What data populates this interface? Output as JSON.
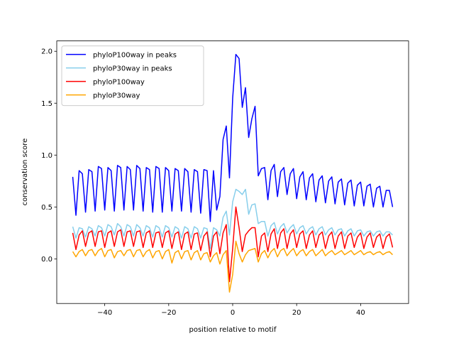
{
  "chart_data": {
    "type": "line",
    "xlabel": "position relative to motif",
    "ylabel": "conservation score",
    "legend": "upper left",
    "xlim": [
      -55,
      55
    ],
    "ylim": [
      -0.43,
      2.1
    ],
    "xticks": [
      {
        "value": -40,
        "label": "−40"
      },
      {
        "value": -20,
        "label": "−20"
      },
      0,
      20,
      40
    ],
    "yticks": [
      {
        "value": 0,
        "label": "0.0"
      },
      0.5,
      {
        "value": 1,
        "label": "1.0"
      },
      1.5,
      {
        "value": 2,
        "label": "2.0"
      }
    ],
    "x": [
      -50,
      -49,
      -48,
      -47,
      -46,
      -45,
      -44,
      -43,
      -42,
      -41,
      -40,
      -39,
      -38,
      -37,
      -36,
      -35,
      -34,
      -33,
      -32,
      -31,
      -30,
      -29,
      -28,
      -27,
      -26,
      -25,
      -24,
      -23,
      -22,
      -21,
      -20,
      -19,
      -18,
      -17,
      -16,
      -15,
      -14,
      -13,
      -12,
      -11,
      -10,
      -9,
      -8,
      -7,
      -6,
      -5,
      -4,
      -3,
      -2,
      -1,
      0,
      1,
      2,
      3,
      4,
      5,
      6,
      7,
      8,
      9,
      10,
      11,
      12,
      13,
      14,
      15,
      16,
      17,
      18,
      19,
      20,
      21,
      22,
      23,
      24,
      25,
      26,
      27,
      28,
      29,
      30,
      31,
      32,
      33,
      34,
      35,
      36,
      37,
      38,
      39,
      40,
      41,
      42,
      43,
      44,
      45,
      46,
      47,
      48,
      49,
      50
    ],
    "series": [
      {
        "name": "phyloP100way in peaks",
        "color": "#0000ff",
        "values": [
          0.79,
          0.42,
          0.85,
          0.82,
          0.45,
          0.86,
          0.84,
          0.46,
          0.89,
          0.87,
          0.47,
          0.88,
          0.85,
          0.46,
          0.9,
          0.88,
          0.47,
          0.89,
          0.86,
          0.47,
          0.9,
          0.87,
          0.46,
          0.88,
          0.86,
          0.45,
          0.89,
          0.87,
          0.45,
          0.88,
          0.85,
          0.46,
          0.87,
          0.85,
          0.46,
          0.87,
          0.84,
          0.45,
          0.86,
          0.84,
          0.44,
          0.86,
          0.85,
          0.36,
          0.85,
          0.47,
          0.6,
          1.15,
          1.28,
          0.78,
          1.55,
          1.97,
          1.93,
          1.46,
          1.65,
          1.17,
          1.35,
          1.47,
          0.8,
          0.87,
          0.88,
          0.57,
          0.85,
          0.91,
          0.6,
          0.84,
          0.88,
          0.62,
          0.82,
          0.87,
          0.58,
          0.79,
          0.84,
          0.57,
          0.78,
          0.82,
          0.55,
          0.76,
          0.8,
          0.54,
          0.75,
          0.79,
          0.53,
          0.74,
          0.77,
          0.52,
          0.73,
          0.76,
          0.51,
          0.71,
          0.74,
          0.51,
          0.7,
          0.72,
          0.5,
          0.68,
          0.7,
          0.5,
          0.66,
          0.66,
          0.5
        ]
      },
      {
        "name": "phyloP30way in peaks",
        "color": "#87ceeb",
        "values": [
          0.31,
          0.2,
          0.3,
          0.29,
          0.21,
          0.31,
          0.29,
          0.22,
          0.32,
          0.3,
          0.22,
          0.33,
          0.31,
          0.23,
          0.34,
          0.31,
          0.22,
          0.33,
          0.31,
          0.22,
          0.33,
          0.3,
          0.22,
          0.32,
          0.3,
          0.21,
          0.32,
          0.3,
          0.21,
          0.32,
          0.3,
          0.21,
          0.31,
          0.29,
          0.2,
          0.31,
          0.29,
          0.2,
          0.31,
          0.29,
          0.2,
          0.3,
          0.29,
          0.1,
          0.3,
          0.28,
          0.22,
          0.4,
          0.46,
          0.23,
          0.55,
          0.67,
          0.65,
          0.62,
          0.67,
          0.43,
          0.52,
          0.53,
          0.34,
          0.36,
          0.36,
          0.22,
          0.32,
          0.35,
          0.24,
          0.31,
          0.34,
          0.25,
          0.3,
          0.33,
          0.24,
          0.3,
          0.32,
          0.24,
          0.29,
          0.31,
          0.23,
          0.29,
          0.31,
          0.23,
          0.28,
          0.3,
          0.23,
          0.28,
          0.29,
          0.22,
          0.27,
          0.29,
          0.22,
          0.27,
          0.28,
          0.22,
          0.26,
          0.27,
          0.22,
          0.26,
          0.27,
          0.22,
          0.26,
          0.26,
          0.23
        ]
      },
      {
        "name": "phyloP100way",
        "color": "#ff0000",
        "values": [
          0.25,
          0.09,
          0.23,
          0.27,
          0.12,
          0.25,
          0.27,
          0.12,
          0.26,
          0.27,
          0.11,
          0.25,
          0.27,
          0.12,
          0.26,
          0.28,
          0.12,
          0.26,
          0.27,
          0.12,
          0.26,
          0.27,
          0.11,
          0.25,
          0.27,
          0.11,
          0.25,
          0.26,
          0.11,
          0.25,
          0.27,
          0.1,
          0.24,
          0.26,
          0.09,
          0.24,
          0.26,
          0.09,
          0.24,
          0.25,
          0.08,
          0.22,
          0.26,
          0.02,
          0.22,
          0.26,
          0.05,
          0.25,
          0.33,
          -0.22,
          0.1,
          0.5,
          0.3,
          0.07,
          0.23,
          0.27,
          0.3,
          0.3,
          0.02,
          0.22,
          0.25,
          0.07,
          0.24,
          0.29,
          0.1,
          0.25,
          0.29,
          0.1,
          0.24,
          0.28,
          0.11,
          0.24,
          0.27,
          0.1,
          0.23,
          0.27,
          0.11,
          0.23,
          0.26,
          0.1,
          0.22,
          0.26,
          0.1,
          0.22,
          0.26,
          0.1,
          0.22,
          0.25,
          0.11,
          0.21,
          0.25,
          0.1,
          0.21,
          0.25,
          0.11,
          0.21,
          0.24,
          0.1,
          0.21,
          0.24,
          0.11
        ]
      },
      {
        "name": "phyloP30way",
        "color": "#ffa500",
        "values": [
          0.07,
          0.02,
          0.07,
          0.09,
          0.03,
          0.08,
          0.09,
          0.03,
          0.08,
          0.1,
          0.02,
          0.08,
          0.09,
          0.01,
          0.07,
          0.08,
          0.03,
          0.08,
          0.09,
          0.02,
          0.08,
          0.09,
          0.02,
          0.07,
          0.09,
          0.01,
          0.07,
          0.08,
          0.0,
          0.07,
          0.09,
          -0.04,
          0.06,
          0.08,
          0.0,
          0.07,
          0.08,
          -0.01,
          0.06,
          0.08,
          -0.01,
          0.05,
          0.06,
          -0.03,
          0.03,
          0.06,
          -0.05,
          0.04,
          0.08,
          -0.32,
          -0.15,
          0.17,
          0.05,
          -0.03,
          0.04,
          0.08,
          0.09,
          0.1,
          -0.03,
          0.05,
          0.08,
          0.01,
          0.07,
          0.1,
          0.02,
          0.08,
          0.1,
          0.03,
          0.07,
          0.1,
          0.03,
          0.07,
          0.09,
          0.03,
          0.07,
          0.09,
          0.03,
          0.06,
          0.09,
          0.03,
          0.06,
          0.08,
          0.04,
          0.06,
          0.08,
          0.04,
          0.06,
          0.08,
          0.04,
          0.06,
          0.08,
          0.04,
          0.06,
          0.07,
          0.04,
          0.06,
          0.07,
          0.04,
          0.06,
          0.07,
          0.04
        ]
      }
    ]
  }
}
